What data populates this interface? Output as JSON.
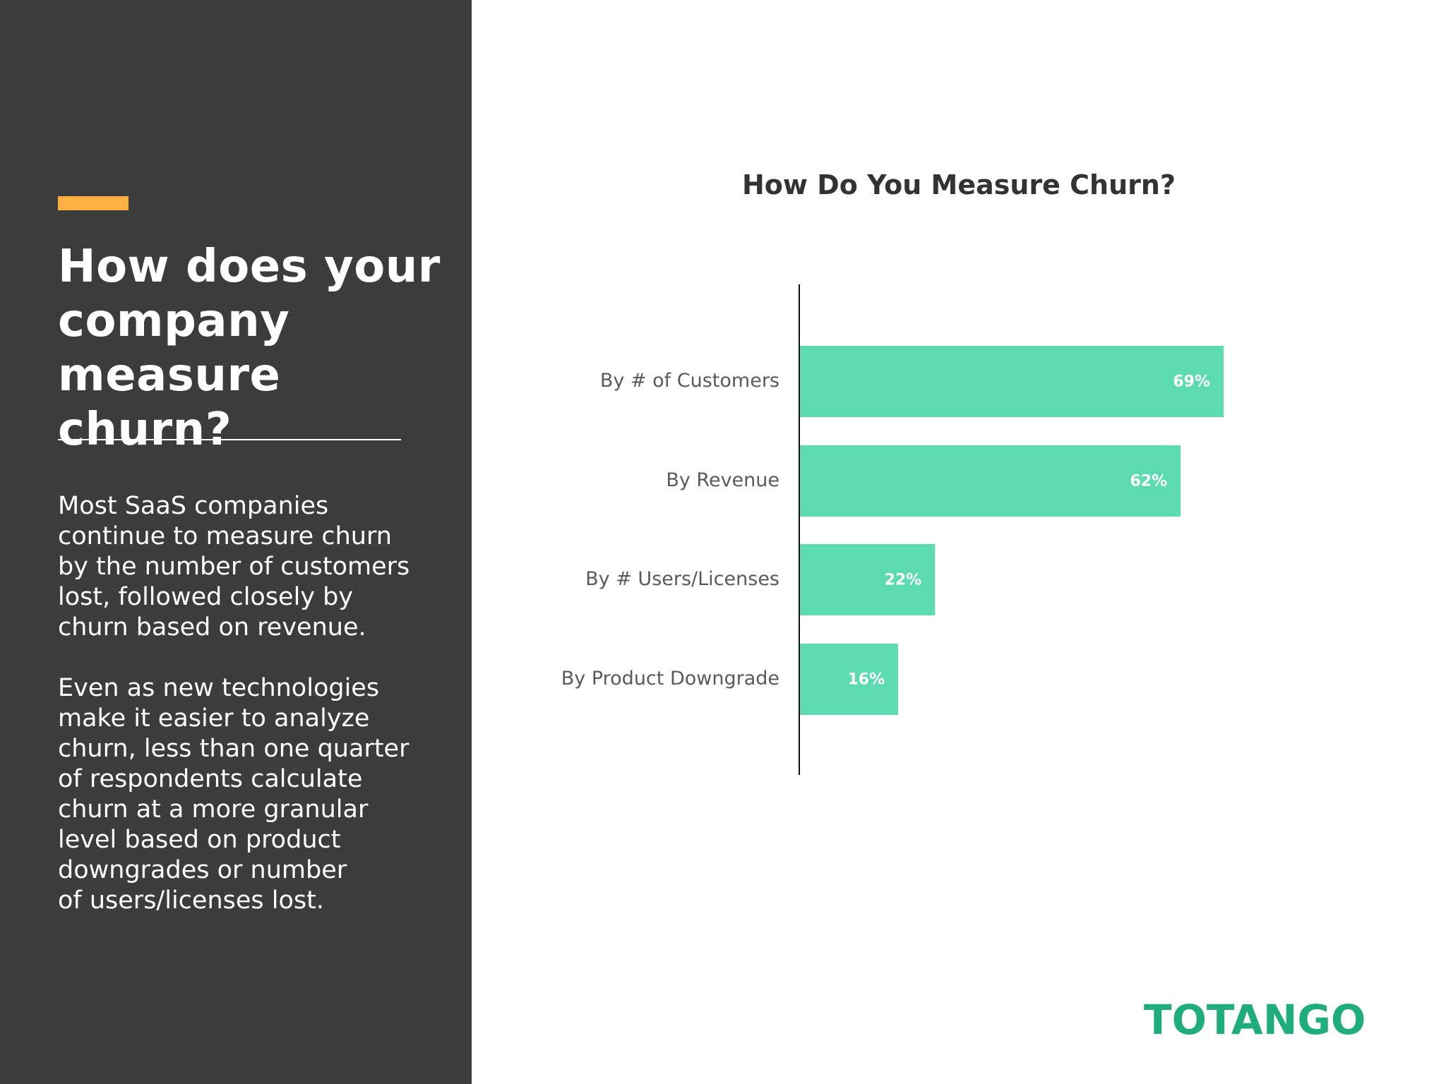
{
  "left_panel": {
    "title": "How does your company measure churn?",
    "paragraphs": [
      "Most SaaS companies\ncontinue to measure churn\nby the number of customers\nlost, followed closely by\nchurn based on revenue.",
      "Even as new technologies\nmake it easier to analyze\nchurn, less than one quarter\nof respondents calculate\nchurn at a more granular\nlevel based on product\ndowngrades or number\nof users/licenses lost."
    ],
    "accent_color": "#fbb040",
    "background_color": "#3d3c3d"
  },
  "brand": {
    "logo_text": "TOTANGO",
    "color": "#1fae7b"
  },
  "chart_data": {
    "type": "bar",
    "orientation": "horizontal",
    "title": "How Do You Measure Churn?",
    "categories": [
      "By # of Customers",
      "By Revenue",
      "By # Users/Licenses",
      "By Product Downgrade"
    ],
    "values": [
      69,
      62,
      22,
      16
    ],
    "value_labels": [
      "69%",
      "62%",
      "22%",
      "16%"
    ],
    "unit": "%",
    "xlim": [
      0,
      100
    ],
    "bar_color": "#5ddbb0",
    "grid": false,
    "legend": "none",
    "xlabel": "",
    "ylabel": ""
  }
}
